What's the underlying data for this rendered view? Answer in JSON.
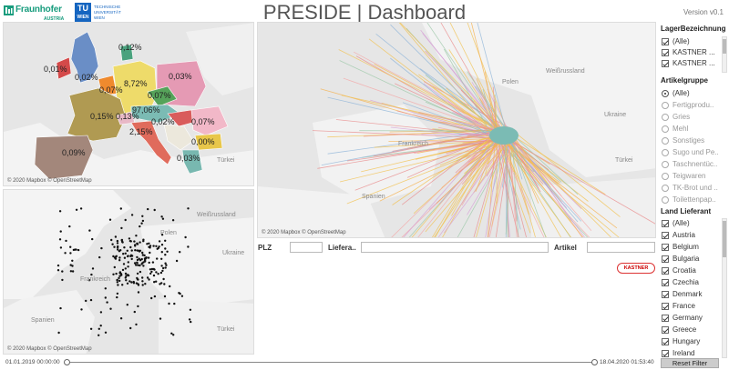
{
  "header": {
    "fraunhofer_name": "Fraunhofer",
    "fraunhofer_sub": "AUSTRIA",
    "tu_mark": "TU",
    "tu_mark2": "WIEN",
    "tu_text": "TECHNISCHE UNIVERSITÄT WIEN",
    "title": "PRESIDE | Dashboard",
    "version": "Version v0.1"
  },
  "map_top_left": {
    "credit": "© 2020 Mapbox © OpenStreetMap",
    "labels": [
      "Türkei"
    ],
    "regions": [
      {
        "value": "0,01%",
        "color": "#d44a4a"
      },
      {
        "value": "0,02%",
        "color": "#6a8ec6"
      },
      {
        "value": "0,12%",
        "color": "#4aa27e"
      },
      {
        "value": "0,07%",
        "color": "#ef8a2e"
      },
      {
        "value": "8,72%",
        "color": "#eedb6a"
      },
      {
        "value": "0,03%",
        "color": "#e59ab4"
      },
      {
        "value": "0,07%",
        "color": "#56a35a"
      },
      {
        "value": "97,06%",
        "color": "#7bbbb4"
      },
      {
        "value": "0,15%",
        "color": "#b09a52"
      },
      {
        "value": "0,13%",
        "color": "#e8b8c6"
      },
      {
        "value": "0,02%",
        "color": "#d95c5c"
      },
      {
        "value": "0,07%",
        "color": "#f2b8c8"
      },
      {
        "value": "2,15%",
        "color": "#e06b5c"
      },
      {
        "value": "0,00%",
        "color": "#e8c74a"
      },
      {
        "value": "0,09%",
        "color": "#a3877b"
      },
      {
        "value": "0,03%",
        "color": "#78b8b0"
      }
    ]
  },
  "map_bottom_left": {
    "credit": "© 2020 Mapbox © OpenStreetMap",
    "labels": [
      "Weißrussland",
      "Polen",
      "Ukraine",
      "Frankreich",
      "Spanien",
      "Türkei"
    ]
  },
  "map_main": {
    "credit": "© 2020 Mapbox © OpenStreetMap",
    "labels": [
      "Weißrussland",
      "Polen",
      "Ukraine",
      "Frankreich",
      "Spanien",
      "Türkei"
    ]
  },
  "filters": {
    "plz_label": "PLZ",
    "lieferant_label": "Liefera..",
    "artikel_label": "Artikel",
    "kastner_badge": "KASTNER"
  },
  "sidebar": {
    "lager_title": "LagerBezeichnung",
    "lager_options": [
      "(Alle)",
      "KASTNER ...",
      "KASTNER ..."
    ],
    "artikel_title": "Artikelgruppe",
    "artikel_options": [
      "(Alle)",
      "Fertigprodu..",
      "Gries",
      "Mehl",
      "Sonstiges",
      "Sugo und Pe..",
      "Taschnentüc..",
      "Teigwaren",
      "TK-Brot und ..",
      "Toilettenpap.."
    ],
    "land_title": "Land Lieferant",
    "land_options": [
      "(Alle)",
      "Austria",
      "Belgium",
      "Bulgaria",
      "Croatia",
      "Czechia",
      "Denmark",
      "France",
      "Germany",
      "Greece",
      "Hungary",
      "Ireland"
    ]
  },
  "timeline": {
    "start": "01.01.2019 00:00:00",
    "end": "18.04.2020 01:53:40",
    "reset_label": "Reset Filter"
  }
}
